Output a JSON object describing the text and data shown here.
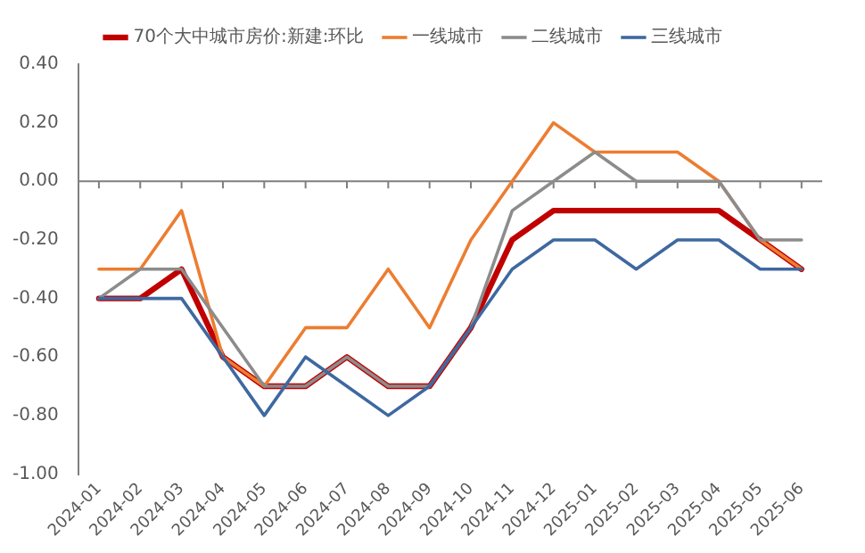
{
  "chart_data": {
    "type": "line",
    "categories": [
      "2024-01",
      "2024-02",
      "2024-03",
      "2024-04",
      "2024-05",
      "2024-06",
      "2024-07",
      "2024-08",
      "2024-09",
      "2024-10",
      "2024-11",
      "2024-12",
      "2025-01",
      "2025-02",
      "2025-03",
      "2025-04",
      "2025-05",
      "2025-06"
    ],
    "series": [
      {
        "name": "70个大中城市房价:新建:环比",
        "color": "#c00000",
        "values": [
          -0.4,
          -0.4,
          -0.3,
          -0.6,
          -0.7,
          -0.7,
          -0.6,
          -0.7,
          -0.7,
          -0.5,
          -0.2,
          -0.1,
          -0.1,
          -0.1,
          -0.1,
          -0.1,
          -0.2,
          -0.3
        ]
      },
      {
        "name": "一线城市",
        "color": "#ed7d31",
        "values": [
          -0.3,
          -0.3,
          -0.1,
          -0.6,
          -0.7,
          -0.5,
          -0.5,
          -0.3,
          -0.5,
          -0.2,
          0,
          0.2,
          0.1,
          0.1,
          0.1,
          0,
          -0.2,
          -0.3
        ]
      },
      {
        "name": "二线城市",
        "color": "#8c8c8c",
        "values": [
          -0.4,
          -0.3,
          -0.3,
          -0.5,
          -0.7,
          -0.7,
          -0.6,
          -0.7,
          -0.7,
          -0.5,
          -0.1,
          0,
          0.1,
          0,
          0,
          0,
          -0.2,
          -0.2
        ]
      },
      {
        "name": "三线城市",
        "color": "#3e68a0",
        "values": [
          -0.4,
          -0.4,
          -0.4,
          -0.6,
          -0.8,
          -0.6,
          -0.7,
          -0.8,
          -0.7,
          -0.5,
          -0.3,
          -0.2,
          -0.2,
          -0.3,
          -0.2,
          -0.2,
          -0.3,
          -0.3
        ]
      }
    ],
    "ylim": [
      -1,
      0.4
    ],
    "yticks": [
      {
        "value": -1,
        "label": "-1.00"
      },
      {
        "value": -0.8,
        "label": "-0.80"
      },
      {
        "value": -0.6,
        "label": "-0.60"
      },
      {
        "value": -0.4,
        "label": "-0.40"
      },
      {
        "value": -0.2,
        "label": "-0.20"
      },
      {
        "value": 0,
        "label": "0.00"
      },
      {
        "value": 0.2,
        "label": "0.20"
      },
      {
        "value": 0.4,
        "label": "0.40"
      }
    ],
    "ref_lines": [
      {
        "axis": "y",
        "value": 0,
        "color": "#7f7f7f"
      }
    ],
    "grid": false,
    "legend": "top",
    "marker": "none",
    "line_style": "solid"
  }
}
